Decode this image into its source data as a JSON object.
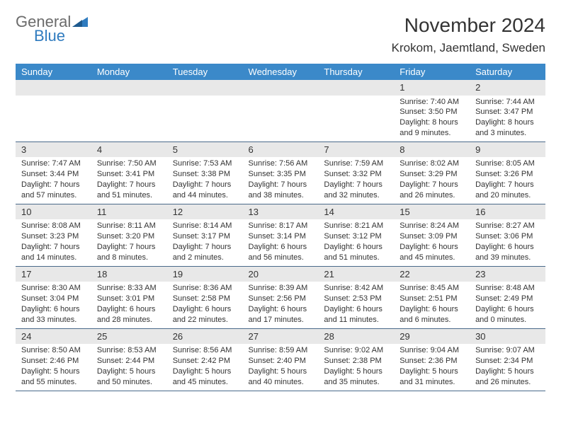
{
  "logo": {
    "word1": "General",
    "word2": "Blue"
  },
  "title": "November 2024",
  "location": "Krokom, Jaemtland, Sweden",
  "colors": {
    "header_bg": "#3b89c9",
    "header_text": "#ffffff",
    "daynum_bg": "#e8e8e8",
    "text": "#333333",
    "rule": "#4a6a8a",
    "logo_gray": "#6b6b6b",
    "logo_blue": "#2f7bbf"
  },
  "day_headers": [
    "Sunday",
    "Monday",
    "Tuesday",
    "Wednesday",
    "Thursday",
    "Friday",
    "Saturday"
  ],
  "weeks": [
    [
      null,
      null,
      null,
      null,
      null,
      {
        "n": "1",
        "sunrise": "Sunrise: 7:40 AM",
        "sunset": "Sunset: 3:50 PM",
        "daylight": "Daylight: 8 hours and 9 minutes."
      },
      {
        "n": "2",
        "sunrise": "Sunrise: 7:44 AM",
        "sunset": "Sunset: 3:47 PM",
        "daylight": "Daylight: 8 hours and 3 minutes."
      }
    ],
    [
      {
        "n": "3",
        "sunrise": "Sunrise: 7:47 AM",
        "sunset": "Sunset: 3:44 PM",
        "daylight": "Daylight: 7 hours and 57 minutes."
      },
      {
        "n": "4",
        "sunrise": "Sunrise: 7:50 AM",
        "sunset": "Sunset: 3:41 PM",
        "daylight": "Daylight: 7 hours and 51 minutes."
      },
      {
        "n": "5",
        "sunrise": "Sunrise: 7:53 AM",
        "sunset": "Sunset: 3:38 PM",
        "daylight": "Daylight: 7 hours and 44 minutes."
      },
      {
        "n": "6",
        "sunrise": "Sunrise: 7:56 AM",
        "sunset": "Sunset: 3:35 PM",
        "daylight": "Daylight: 7 hours and 38 minutes."
      },
      {
        "n": "7",
        "sunrise": "Sunrise: 7:59 AM",
        "sunset": "Sunset: 3:32 PM",
        "daylight": "Daylight: 7 hours and 32 minutes."
      },
      {
        "n": "8",
        "sunrise": "Sunrise: 8:02 AM",
        "sunset": "Sunset: 3:29 PM",
        "daylight": "Daylight: 7 hours and 26 minutes."
      },
      {
        "n": "9",
        "sunrise": "Sunrise: 8:05 AM",
        "sunset": "Sunset: 3:26 PM",
        "daylight": "Daylight: 7 hours and 20 minutes."
      }
    ],
    [
      {
        "n": "10",
        "sunrise": "Sunrise: 8:08 AM",
        "sunset": "Sunset: 3:23 PM",
        "daylight": "Daylight: 7 hours and 14 minutes."
      },
      {
        "n": "11",
        "sunrise": "Sunrise: 8:11 AM",
        "sunset": "Sunset: 3:20 PM",
        "daylight": "Daylight: 7 hours and 8 minutes."
      },
      {
        "n": "12",
        "sunrise": "Sunrise: 8:14 AM",
        "sunset": "Sunset: 3:17 PM",
        "daylight": "Daylight: 7 hours and 2 minutes."
      },
      {
        "n": "13",
        "sunrise": "Sunrise: 8:17 AM",
        "sunset": "Sunset: 3:14 PM",
        "daylight": "Daylight: 6 hours and 56 minutes."
      },
      {
        "n": "14",
        "sunrise": "Sunrise: 8:21 AM",
        "sunset": "Sunset: 3:12 PM",
        "daylight": "Daylight: 6 hours and 51 minutes."
      },
      {
        "n": "15",
        "sunrise": "Sunrise: 8:24 AM",
        "sunset": "Sunset: 3:09 PM",
        "daylight": "Daylight: 6 hours and 45 minutes."
      },
      {
        "n": "16",
        "sunrise": "Sunrise: 8:27 AM",
        "sunset": "Sunset: 3:06 PM",
        "daylight": "Daylight: 6 hours and 39 minutes."
      }
    ],
    [
      {
        "n": "17",
        "sunrise": "Sunrise: 8:30 AM",
        "sunset": "Sunset: 3:04 PM",
        "daylight": "Daylight: 6 hours and 33 minutes."
      },
      {
        "n": "18",
        "sunrise": "Sunrise: 8:33 AM",
        "sunset": "Sunset: 3:01 PM",
        "daylight": "Daylight: 6 hours and 28 minutes."
      },
      {
        "n": "19",
        "sunrise": "Sunrise: 8:36 AM",
        "sunset": "Sunset: 2:58 PM",
        "daylight": "Daylight: 6 hours and 22 minutes."
      },
      {
        "n": "20",
        "sunrise": "Sunrise: 8:39 AM",
        "sunset": "Sunset: 2:56 PM",
        "daylight": "Daylight: 6 hours and 17 minutes."
      },
      {
        "n": "21",
        "sunrise": "Sunrise: 8:42 AM",
        "sunset": "Sunset: 2:53 PM",
        "daylight": "Daylight: 6 hours and 11 minutes."
      },
      {
        "n": "22",
        "sunrise": "Sunrise: 8:45 AM",
        "sunset": "Sunset: 2:51 PM",
        "daylight": "Daylight: 6 hours and 6 minutes."
      },
      {
        "n": "23",
        "sunrise": "Sunrise: 8:48 AM",
        "sunset": "Sunset: 2:49 PM",
        "daylight": "Daylight: 6 hours and 0 minutes."
      }
    ],
    [
      {
        "n": "24",
        "sunrise": "Sunrise: 8:50 AM",
        "sunset": "Sunset: 2:46 PM",
        "daylight": "Daylight: 5 hours and 55 minutes."
      },
      {
        "n": "25",
        "sunrise": "Sunrise: 8:53 AM",
        "sunset": "Sunset: 2:44 PM",
        "daylight": "Daylight: 5 hours and 50 minutes."
      },
      {
        "n": "26",
        "sunrise": "Sunrise: 8:56 AM",
        "sunset": "Sunset: 2:42 PM",
        "daylight": "Daylight: 5 hours and 45 minutes."
      },
      {
        "n": "27",
        "sunrise": "Sunrise: 8:59 AM",
        "sunset": "Sunset: 2:40 PM",
        "daylight": "Daylight: 5 hours and 40 minutes."
      },
      {
        "n": "28",
        "sunrise": "Sunrise: 9:02 AM",
        "sunset": "Sunset: 2:38 PM",
        "daylight": "Daylight: 5 hours and 35 minutes."
      },
      {
        "n": "29",
        "sunrise": "Sunrise: 9:04 AM",
        "sunset": "Sunset: 2:36 PM",
        "daylight": "Daylight: 5 hours and 31 minutes."
      },
      {
        "n": "30",
        "sunrise": "Sunrise: 9:07 AM",
        "sunset": "Sunset: 2:34 PM",
        "daylight": "Daylight: 5 hours and 26 minutes."
      }
    ]
  ]
}
